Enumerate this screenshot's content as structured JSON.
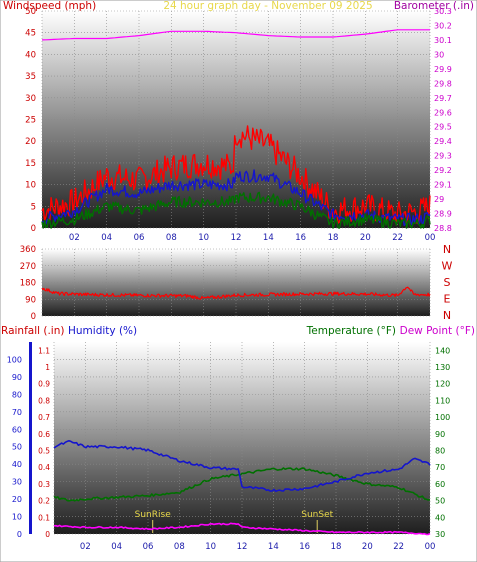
{
  "chart_data": [
    {
      "type": "line",
      "title": "24 hour graph day - November 09 2025",
      "left_axis_label": "Windspeed (mph)",
      "right_axis_label": "Barometer (.in)",
      "x_ticks": [
        "02",
        "04",
        "06",
        "08",
        "10",
        "12",
        "14",
        "16",
        "18",
        "20",
        "22",
        "00"
      ],
      "y_left_range": [
        0,
        50
      ],
      "y_left_ticks": [
        0,
        5,
        10,
        15,
        20,
        25,
        30,
        35,
        40,
        45,
        50
      ],
      "y_right_range": [
        28.8,
        30.3
      ],
      "y_right_ticks": [
        "28.8",
        "28.9",
        "29",
        "29.1",
        "29.2",
        "29.3",
        "29.4",
        "29.5",
        "29.6",
        "29.7",
        "29.8",
        "29.9",
        "30",
        "30.1",
        "30.2",
        "30.3"
      ],
      "grid": true,
      "series": [
        {
          "key": "gust",
          "color": "#ff0000",
          "axis": "left",
          "hours": [
            0,
            2,
            4,
            6,
            8,
            10,
            11.8,
            12,
            14,
            16,
            18,
            20,
            22,
            23.5,
            24
          ],
          "values": [
            4,
            6,
            12,
            11,
            14,
            15,
            14,
            22,
            19,
            12,
            4,
            5,
            3,
            4,
            5
          ]
        },
        {
          "key": "avg",
          "color": "#1515cc",
          "axis": "left",
          "hours": [
            0,
            2,
            4,
            6,
            8,
            10,
            11.8,
            12,
            14,
            16,
            18,
            20,
            22,
            23.5,
            24
          ],
          "values": [
            2,
            4,
            9,
            8,
            10,
            10,
            10,
            12,
            12,
            8,
            3,
            3,
            2,
            2,
            3
          ]
        },
        {
          "key": "low",
          "color": "#007000",
          "axis": "left",
          "hours": [
            0,
            2,
            4,
            6,
            8,
            10,
            11.8,
            12,
            14,
            16,
            18,
            20,
            22,
            23.5,
            24
          ],
          "values": [
            1,
            2,
            5,
            4,
            6,
            6,
            6,
            7,
            7,
            5,
            1,
            2,
            1,
            1,
            2
          ]
        },
        {
          "key": "baro",
          "color": "#ff00ff",
          "axis": "right",
          "hours": [
            0,
            2,
            4,
            6,
            8,
            10,
            12,
            14,
            16,
            18,
            20,
            22,
            24
          ],
          "values": [
            30.1,
            30.11,
            30.11,
            30.13,
            30.16,
            30.16,
            30.15,
            30.13,
            30.12,
            30.12,
            30.14,
            30.17,
            30.17
          ]
        }
      ]
    },
    {
      "type": "line",
      "x_ticks": [
        "02",
        "04",
        "06",
        "08",
        "10",
        "12",
        "14",
        "16",
        "18",
        "20",
        "22",
        "00"
      ],
      "y_left_range": [
        0,
        360
      ],
      "y_left_ticks": [
        0,
        90,
        180,
        270,
        360
      ],
      "y_left_tick_labels": [
        "0",
        "90",
        "180",
        "270",
        "360"
      ],
      "compass_labels": [
        "N",
        "W",
        "S",
        "E",
        "N"
      ],
      "grid": true,
      "series": [
        {
          "key": "direction",
          "color": "#ff0000",
          "hours": [
            0,
            1,
            3,
            5,
            7,
            9,
            10,
            12,
            14,
            16,
            18,
            20,
            22,
            22.6,
            23,
            24
          ],
          "values": [
            150,
            120,
            115,
            112,
            110,
            108,
            95,
            112,
            115,
            118,
            120,
            118,
            110,
            160,
            115,
            115
          ]
        }
      ]
    },
    {
      "type": "line",
      "left_axis_label_1": "Rainfall (.in)",
      "left_axis_label_2": "Humidity (%)",
      "right_axis_label_1": "Temperature (°F)",
      "right_axis_label_2": "Dew Point (°F)",
      "x_ticks": [
        "02",
        "04",
        "06",
        "08",
        "10",
        "12",
        "14",
        "16",
        "18",
        "20",
        "22",
        "00"
      ],
      "y_humidity_ticks": [
        0,
        10,
        20,
        30,
        40,
        50,
        60,
        70,
        80,
        90,
        100
      ],
      "y_rain_ticks": [
        "0",
        "0.1",
        "0.2",
        "0.3",
        "0.4",
        "0.5",
        "0.6",
        "0.7",
        "0.8",
        "0.9",
        "1",
        "1.1"
      ],
      "y_temp_ticks": [
        30,
        40,
        50,
        60,
        70,
        80,
        90,
        100,
        110,
        120,
        130,
        140
      ],
      "y_humidity_range": [
        0,
        110
      ],
      "y_temp_range": [
        30,
        145
      ],
      "annotations": [
        {
          "label": "SunRise",
          "hour": 6.3
        },
        {
          "label": "SunSet",
          "hour": 16.8
        }
      ],
      "grid": true,
      "series": [
        {
          "key": "humidity",
          "color": "#1515cc",
          "axis": "humidity",
          "hours": [
            0,
            1,
            2,
            4,
            6,
            8,
            10,
            11.8,
            12,
            14,
            16,
            18,
            20,
            22,
            23,
            24
          ],
          "values": [
            50,
            53,
            50,
            50,
            48,
            42,
            38,
            37,
            27,
            25,
            26,
            30,
            35,
            37,
            43,
            40
          ]
        },
        {
          "key": "temperature",
          "color": "#007000",
          "axis": "temp",
          "hours": [
            0,
            1,
            2,
            4,
            6,
            8,
            10,
            12,
            14,
            16,
            18,
            20,
            22,
            24
          ],
          "values": [
            52,
            50,
            51,
            52,
            53,
            55,
            63,
            66,
            69,
            69,
            65,
            60,
            58,
            50
          ]
        },
        {
          "key": "dewpoint",
          "color": "#ff00ff",
          "axis": "temp",
          "hours": [
            0,
            2,
            4,
            6,
            8,
            10,
            11.8,
            12,
            14,
            16,
            18,
            20,
            22,
            24
          ],
          "values": [
            35,
            34,
            34,
            33,
            34,
            36,
            36,
            34,
            33,
            32,
            31,
            31,
            31,
            30
          ]
        }
      ]
    }
  ]
}
